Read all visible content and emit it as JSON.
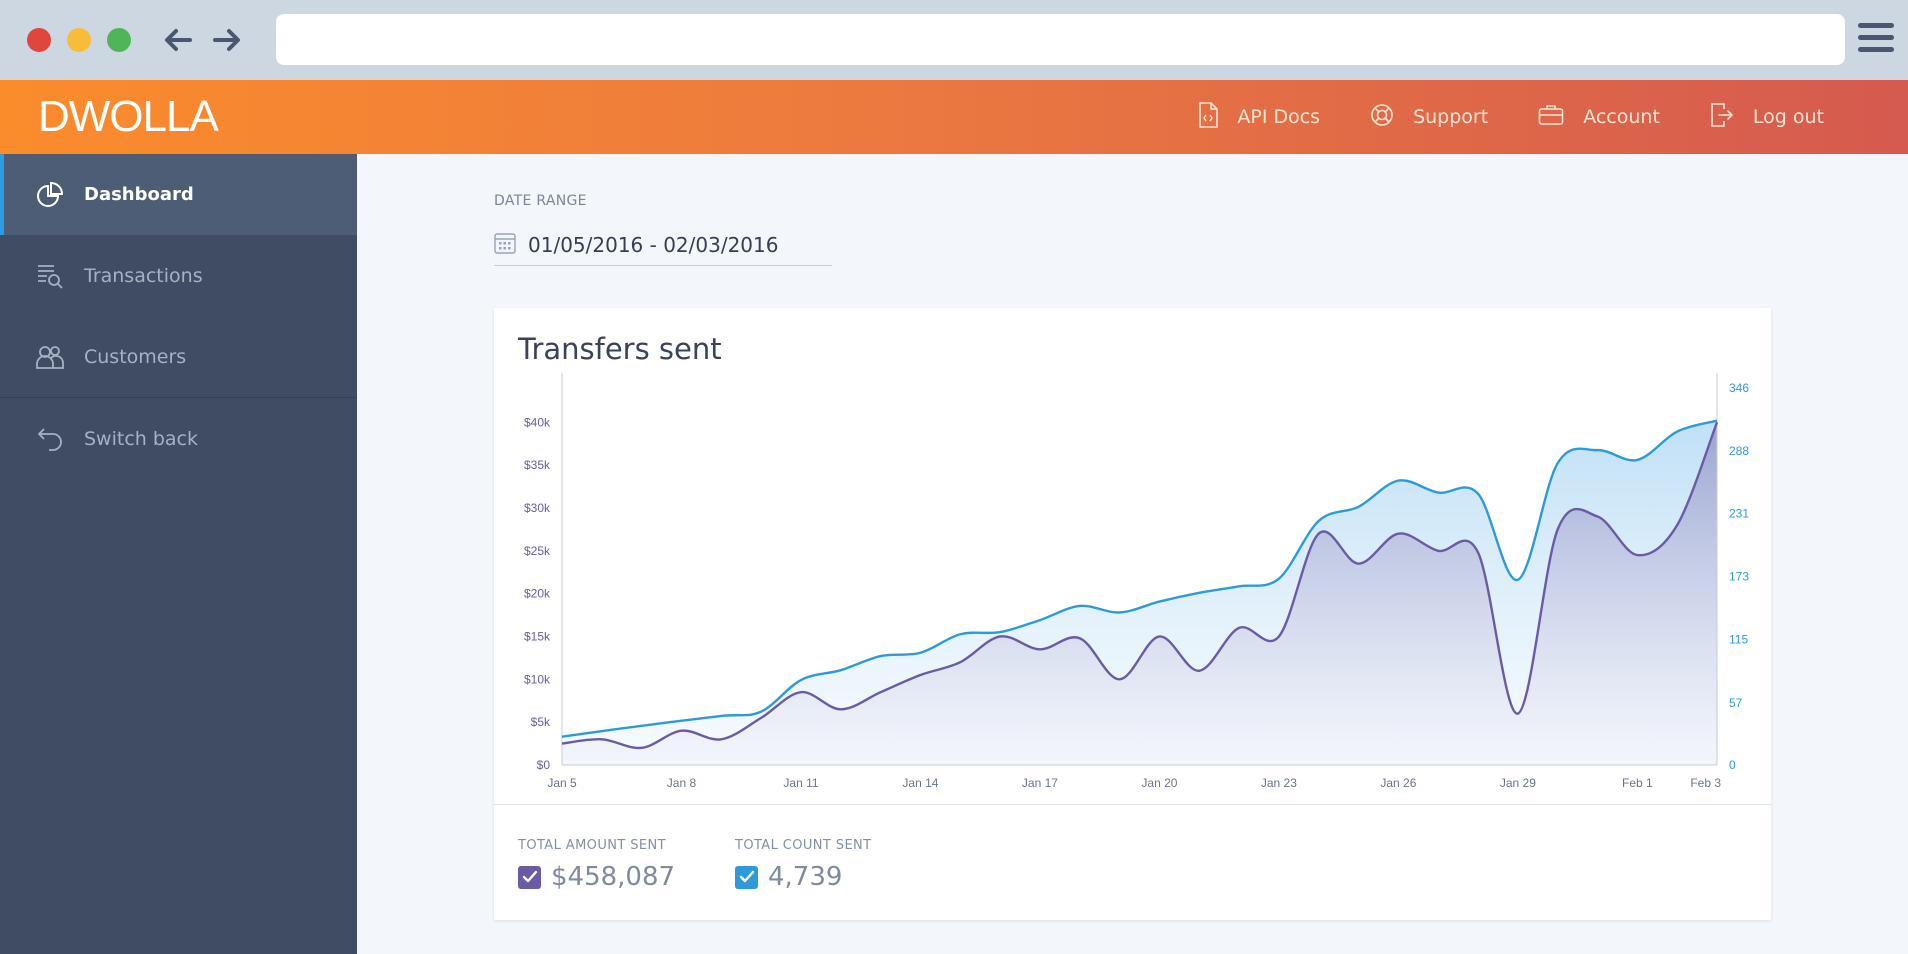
{
  "browser": {
    "url": ""
  },
  "app": {
    "logo": "DWOLLA"
  },
  "topnav": [
    {
      "label": "API Docs",
      "icon": "document-icon"
    },
    {
      "label": "Support",
      "icon": "lifebuoy-icon"
    },
    {
      "label": "Account",
      "icon": "briefcase-icon"
    },
    {
      "label": "Log out",
      "icon": "logout-icon"
    }
  ],
  "sidebar": {
    "items": [
      {
        "label": "Dashboard",
        "icon": "pie-chart-icon",
        "active": true
      },
      {
        "label": "Transactions",
        "icon": "list-search-icon"
      },
      {
        "label": "Customers",
        "icon": "users-icon"
      },
      {
        "label": "Switch back",
        "icon": "undo-icon"
      }
    ]
  },
  "date_range": {
    "label": "DATE RANGE",
    "value": "01/05/2016 - 02/03/2016"
  },
  "card": {
    "title": "Transfers sent"
  },
  "totals": {
    "amount_label": "TOTAL AMOUNT SENT",
    "amount_value": "$458,087",
    "count_label": "TOTAL COUNT SENT",
    "count_value": "4,739"
  },
  "colors": {
    "amount": "#6b5ba5",
    "count": "#2e9ad9"
  },
  "chart_data": {
    "type": "line",
    "title": "Transfers sent",
    "x_labels": [
      "Jan 5",
      "Jan 8",
      "Jan 11",
      "Jan 14",
      "Jan 17",
      "Jan 20",
      "Jan 23",
      "Jan 26",
      "Jan 29",
      "Feb 1",
      "Feb 3"
    ],
    "y_left": {
      "ticks": [
        "$0",
        "$5k",
        "$10k",
        "$15k",
        "$20k",
        "$25k",
        "$30k",
        "$35k",
        "$40k"
      ],
      "range": [
        0,
        44000
      ]
    },
    "y_right": {
      "ticks": [
        "0",
        "57",
        "115",
        "173",
        "231",
        "288",
        "346"
      ],
      "range": [
        0,
        346
      ]
    },
    "series": [
      {
        "axis": "right",
        "x": [
          "Jan 5",
          "Jan 7",
          "Jan 9",
          "Jan 10",
          "Jan 11",
          "Jan 12",
          "Jan 13",
          "Jan 14",
          "Jan 15",
          "Jan 16",
          "Jan 17",
          "Jan 18",
          "Jan 19",
          "Jan 20",
          "Jan 21",
          "Jan 22",
          "Jan 23",
          "Jan 24",
          "Jan 25",
          "Jan 26",
          "Jan 27",
          "Jan 28",
          "Jan 29",
          "Jan 30",
          "Jan 31",
          "Feb 1",
          "Feb 2",
          "Feb 3"
        ],
        "values": [
          26,
          36,
          45,
          49,
          78,
          87,
          100,
          103,
          120,
          122,
          133,
          146,
          140,
          150,
          158,
          164,
          171,
          224,
          237,
          261,
          250,
          249,
          170,
          277,
          289,
          280,
          306,
          316
        ]
      },
      {
        "axis": "left",
        "x": [
          "Jan 5",
          "Jan 6",
          "Jan 7",
          "Jan 8",
          "Jan 9",
          "Jan 10",
          "Jan 11",
          "Jan 12",
          "Jan 13",
          "Jan 14",
          "Jan 15",
          "Jan 16",
          "Jan 17",
          "Jan 18",
          "Jan 19",
          "Jan 20",
          "Jan 21",
          "Jan 22",
          "Jan 23",
          "Jan 24",
          "Jan 25",
          "Jan 26",
          "Jan 27",
          "Jan 28",
          "Jan 29",
          "Jan 30",
          "Jan 31",
          "Feb 1",
          "Feb 2",
          "Feb 3"
        ],
        "values": [
          2500,
          3000,
          2000,
          4000,
          3000,
          5500,
          8500,
          6500,
          8500,
          10500,
          12000,
          15000,
          13500,
          14800,
          10000,
          15000,
          11000,
          16000,
          15000,
          27000,
          23500,
          27000,
          25000,
          24800,
          6000,
          27500,
          29000,
          24500,
          28000,
          40000
        ]
      }
    ],
    "grid": false,
    "legend": "bottom"
  }
}
